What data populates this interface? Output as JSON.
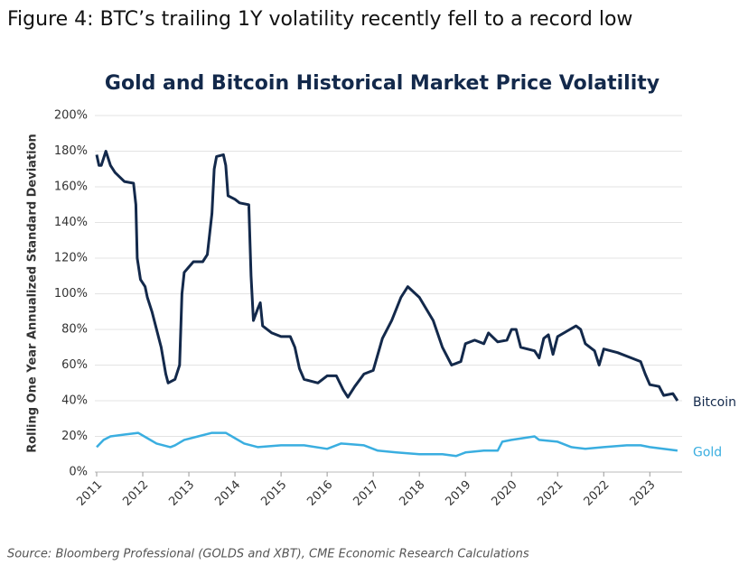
{
  "chart_data": {
    "type": "line",
    "heading": "Figure 4: BTC’s trailing 1Y volatility recently fell to a record low",
    "title": "Gold and Bitcoin Historical Market Price Volatility",
    "ylabel": "Rolling One Year Annualized Standard Deviation",
    "source": "Source: Bloomberg Professional (GOLDS and XBT), CME Economic Research Calculations",
    "xlim": [
      2011,
      2023.7
    ],
    "xticks": [
      2011,
      2012,
      2013,
      2014,
      2015,
      2016,
      2017,
      2018,
      2019,
      2020,
      2021,
      2022,
      2023
    ],
    "ylim": [
      0,
      200
    ],
    "yticks": [
      {
        "value": 0,
        "label": "0%"
      },
      {
        "value": 20,
        "label": "20%"
      },
      {
        "value": 40,
        "label": "40%"
      },
      {
        "value": 60,
        "label": "60%"
      },
      {
        "value": 80,
        "label": "80%"
      },
      {
        "value": 100,
        "label": "100%"
      },
      {
        "value": 120,
        "label": "120%"
      },
      {
        "value": 140,
        "label": "140%"
      },
      {
        "value": 160,
        "label": "160%"
      },
      {
        "value": 180,
        "label": "180%"
      },
      {
        "value": 200,
        "label": "200%"
      }
    ],
    "grid": true,
    "series": [
      {
        "name": "Bitcoin",
        "color": "#13294b",
        "x": [
          2011.0,
          2011.05,
          2011.1,
          2011.2,
          2011.3,
          2011.4,
          2011.6,
          2011.8,
          2011.85,
          2011.88,
          2011.95,
          2012.05,
          2012.1,
          2012.2,
          2012.3,
          2012.4,
          2012.5,
          2012.55,
          2012.7,
          2012.8,
          2012.85,
          2012.9,
          2013.0,
          2013.1,
          2013.3,
          2013.4,
          2013.5,
          2013.55,
          2013.6,
          2013.75,
          2013.8,
          2013.85,
          2014.0,
          2014.1,
          2014.3,
          2014.35,
          2014.4,
          2014.5,
          2014.55,
          2014.6,
          2014.8,
          2015.0,
          2015.2,
          2015.3,
          2015.4,
          2015.5,
          2015.8,
          2016.0,
          2016.2,
          2016.35,
          2016.45,
          2016.6,
          2016.8,
          2017.0,
          2017.2,
          2017.4,
          2017.6,
          2017.75,
          2018.0,
          2018.3,
          2018.5,
          2018.7,
          2018.9,
          2019.0,
          2019.2,
          2019.4,
          2019.5,
          2019.7,
          2019.9,
          2020.0,
          2020.1,
          2020.2,
          2020.5,
          2020.6,
          2020.7,
          2020.8,
          2020.9,
          2021.0,
          2021.2,
          2021.4,
          2021.5,
          2021.6,
          2021.8,
          2021.9,
          2022.0,
          2022.3,
          2022.6,
          2022.8,
          2022.9,
          2023.0,
          2023.2,
          2023.3,
          2023.5,
          2023.6
        ],
        "values": [
          178,
          172,
          172,
          180,
          172,
          168,
          163,
          162,
          150,
          120,
          108,
          104,
          98,
          90,
          80,
          70,
          55,
          50,
          52,
          60,
          100,
          112,
          115,
          118,
          118,
          122,
          145,
          170,
          177,
          178,
          172,
          155,
          153,
          151,
          150,
          110,
          85,
          92,
          95,
          82,
          78,
          76,
          76,
          70,
          58,
          52,
          50,
          54,
          54,
          46,
          42,
          48,
          55,
          57,
          75,
          85,
          98,
          104,
          98,
          85,
          70,
          60,
          62,
          72,
          74,
          72,
          78,
          73,
          74,
          80,
          80,
          70,
          68,
          64,
          75,
          77,
          66,
          76,
          79,
          82,
          80,
          72,
          68,
          60,
          69,
          67,
          64,
          62,
          55,
          49,
          48,
          43,
          44,
          40
        ]
      },
      {
        "name": "Gold",
        "color": "#3aaee0",
        "x": [
          2011.0,
          2011.15,
          2011.3,
          2011.6,
          2011.9,
          2012.1,
          2012.3,
          2012.6,
          2012.7,
          2012.9,
          2013.2,
          2013.5,
          2013.8,
          2014.0,
          2014.2,
          2014.5,
          2015.0,
          2015.5,
          2016.0,
          2016.3,
          2016.8,
          2017.1,
          2017.5,
          2018.0,
          2018.5,
          2018.8,
          2019.0,
          2019.4,
          2019.7,
          2019.8,
          2020.0,
          2020.5,
          2020.6,
          2021.0,
          2021.3,
          2021.6,
          2022.0,
          2022.5,
          2022.8,
          2023.0,
          2023.6
        ],
        "values": [
          14,
          18,
          20,
          21,
          22,
          19,
          16,
          14,
          15,
          18,
          20,
          22,
          22,
          19,
          16,
          14,
          15,
          15,
          13,
          16,
          15,
          12,
          11,
          10,
          10,
          9,
          11,
          12,
          12,
          17,
          18,
          20,
          18,
          17,
          14,
          13,
          14,
          15,
          15,
          14,
          12
        ]
      }
    ]
  }
}
